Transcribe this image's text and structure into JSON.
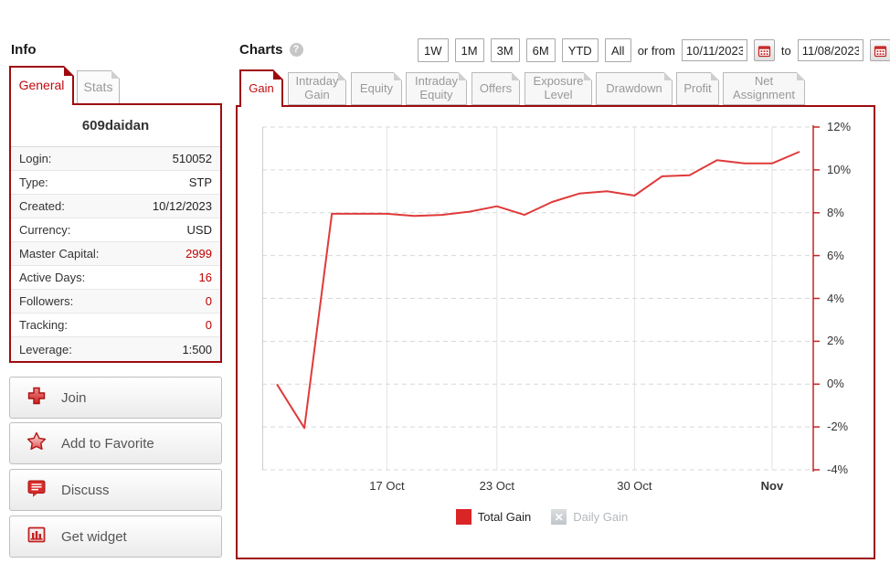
{
  "info": {
    "heading": "Info",
    "tabs": [
      {
        "label": "General",
        "active": true
      },
      {
        "label": "Stats",
        "active": false
      }
    ],
    "account_name": "609daidan",
    "rows": [
      {
        "label": "Login:",
        "value": "510052",
        "red": false
      },
      {
        "label": "Type:",
        "value": "STP",
        "red": false
      },
      {
        "label": "Created:",
        "value": "10/12/2023",
        "red": false
      },
      {
        "label": "Currency:",
        "value": "USD",
        "red": false
      },
      {
        "label": "Master Capital:",
        "value": "2999",
        "red": true
      },
      {
        "label": "Active Days:",
        "value": "16",
        "red": true
      },
      {
        "label": "Followers:",
        "value": "0",
        "red": true
      },
      {
        "label": "Tracking:",
        "value": "0",
        "red": true
      },
      {
        "label": "Leverage:",
        "value": "1:500",
        "red": false
      }
    ],
    "actions": [
      {
        "label": "Join",
        "icon": "plus-icon"
      },
      {
        "label": "Add to Favorite",
        "icon": "star-icon"
      },
      {
        "label": "Discuss",
        "icon": "speech-bubble-icon"
      },
      {
        "label": "Get widget",
        "icon": "bar-chart-icon"
      }
    ]
  },
  "charts": {
    "heading": "Charts",
    "help": "?",
    "range_buttons": [
      "1W",
      "1M",
      "3M",
      "6M",
      "YTD",
      "All"
    ],
    "or_from_label": "or from",
    "from_date": "10/11/2023",
    "to_label": "to",
    "to_date": "11/08/2023",
    "tabs": [
      {
        "label": "Gain",
        "active": true
      },
      {
        "label": "Intraday Gain",
        "active": false
      },
      {
        "label": "Equity",
        "active": false
      },
      {
        "label": "Intraday Equity",
        "active": false
      },
      {
        "label": "Offers",
        "active": false
      },
      {
        "label": "Exposure Level",
        "active": false
      },
      {
        "label": "Drawdown",
        "active": false
      },
      {
        "label": "Profit",
        "active": false
      },
      {
        "label": "Net Assignment",
        "active": false
      }
    ],
    "legend": [
      {
        "label": "Total Gain",
        "color": "#d92525",
        "enabled": true
      },
      {
        "label": "Daily Gain",
        "color": "#c8cdd1",
        "enabled": false
      }
    ],
    "colors": {
      "accent_border": "#9e0b0f",
      "active_tab_text": "#c00c0c",
      "axis": "#c42525"
    }
  },
  "chart_data": {
    "type": "line",
    "title": "Gain",
    "x": [
      "Oct 11",
      "Oct 12",
      "Oct 13",
      "Oct 16",
      "Oct 17",
      "Oct 18",
      "Oct 19",
      "Oct 20",
      "Oct 23",
      "Oct 24",
      "Oct 25",
      "Oct 26",
      "Oct 27",
      "Oct 30",
      "Oct 31",
      "Nov 1",
      "Nov 2",
      "Nov 3",
      "Nov 6",
      "Nov 7"
    ],
    "series": [
      {
        "name": "Total Gain",
        "color": "#e03a3a",
        "values": [
          0,
          -2.05,
          7.95,
          7.95,
          7.95,
          7.85,
          7.9,
          8.05,
          8.3,
          7.9,
          8.5,
          8.9,
          9.0,
          8.8,
          9.7,
          9.75,
          10.45,
          10.3,
          10.3,
          10.85
        ]
      }
    ],
    "ylim": [
      -4,
      12
    ],
    "ytick_step": 2,
    "ytick_suffix": "%",
    "xticks": [
      {
        "label": "17 Oct",
        "index": 4,
        "bold": false
      },
      {
        "label": "23 Oct",
        "index": 8,
        "bold": false
      },
      {
        "label": "30 Oct",
        "index": 13,
        "bold": false
      },
      {
        "label": "Nov",
        "index": 18,
        "bold": true
      }
    ],
    "grid": true,
    "legend_position": "bottom"
  }
}
